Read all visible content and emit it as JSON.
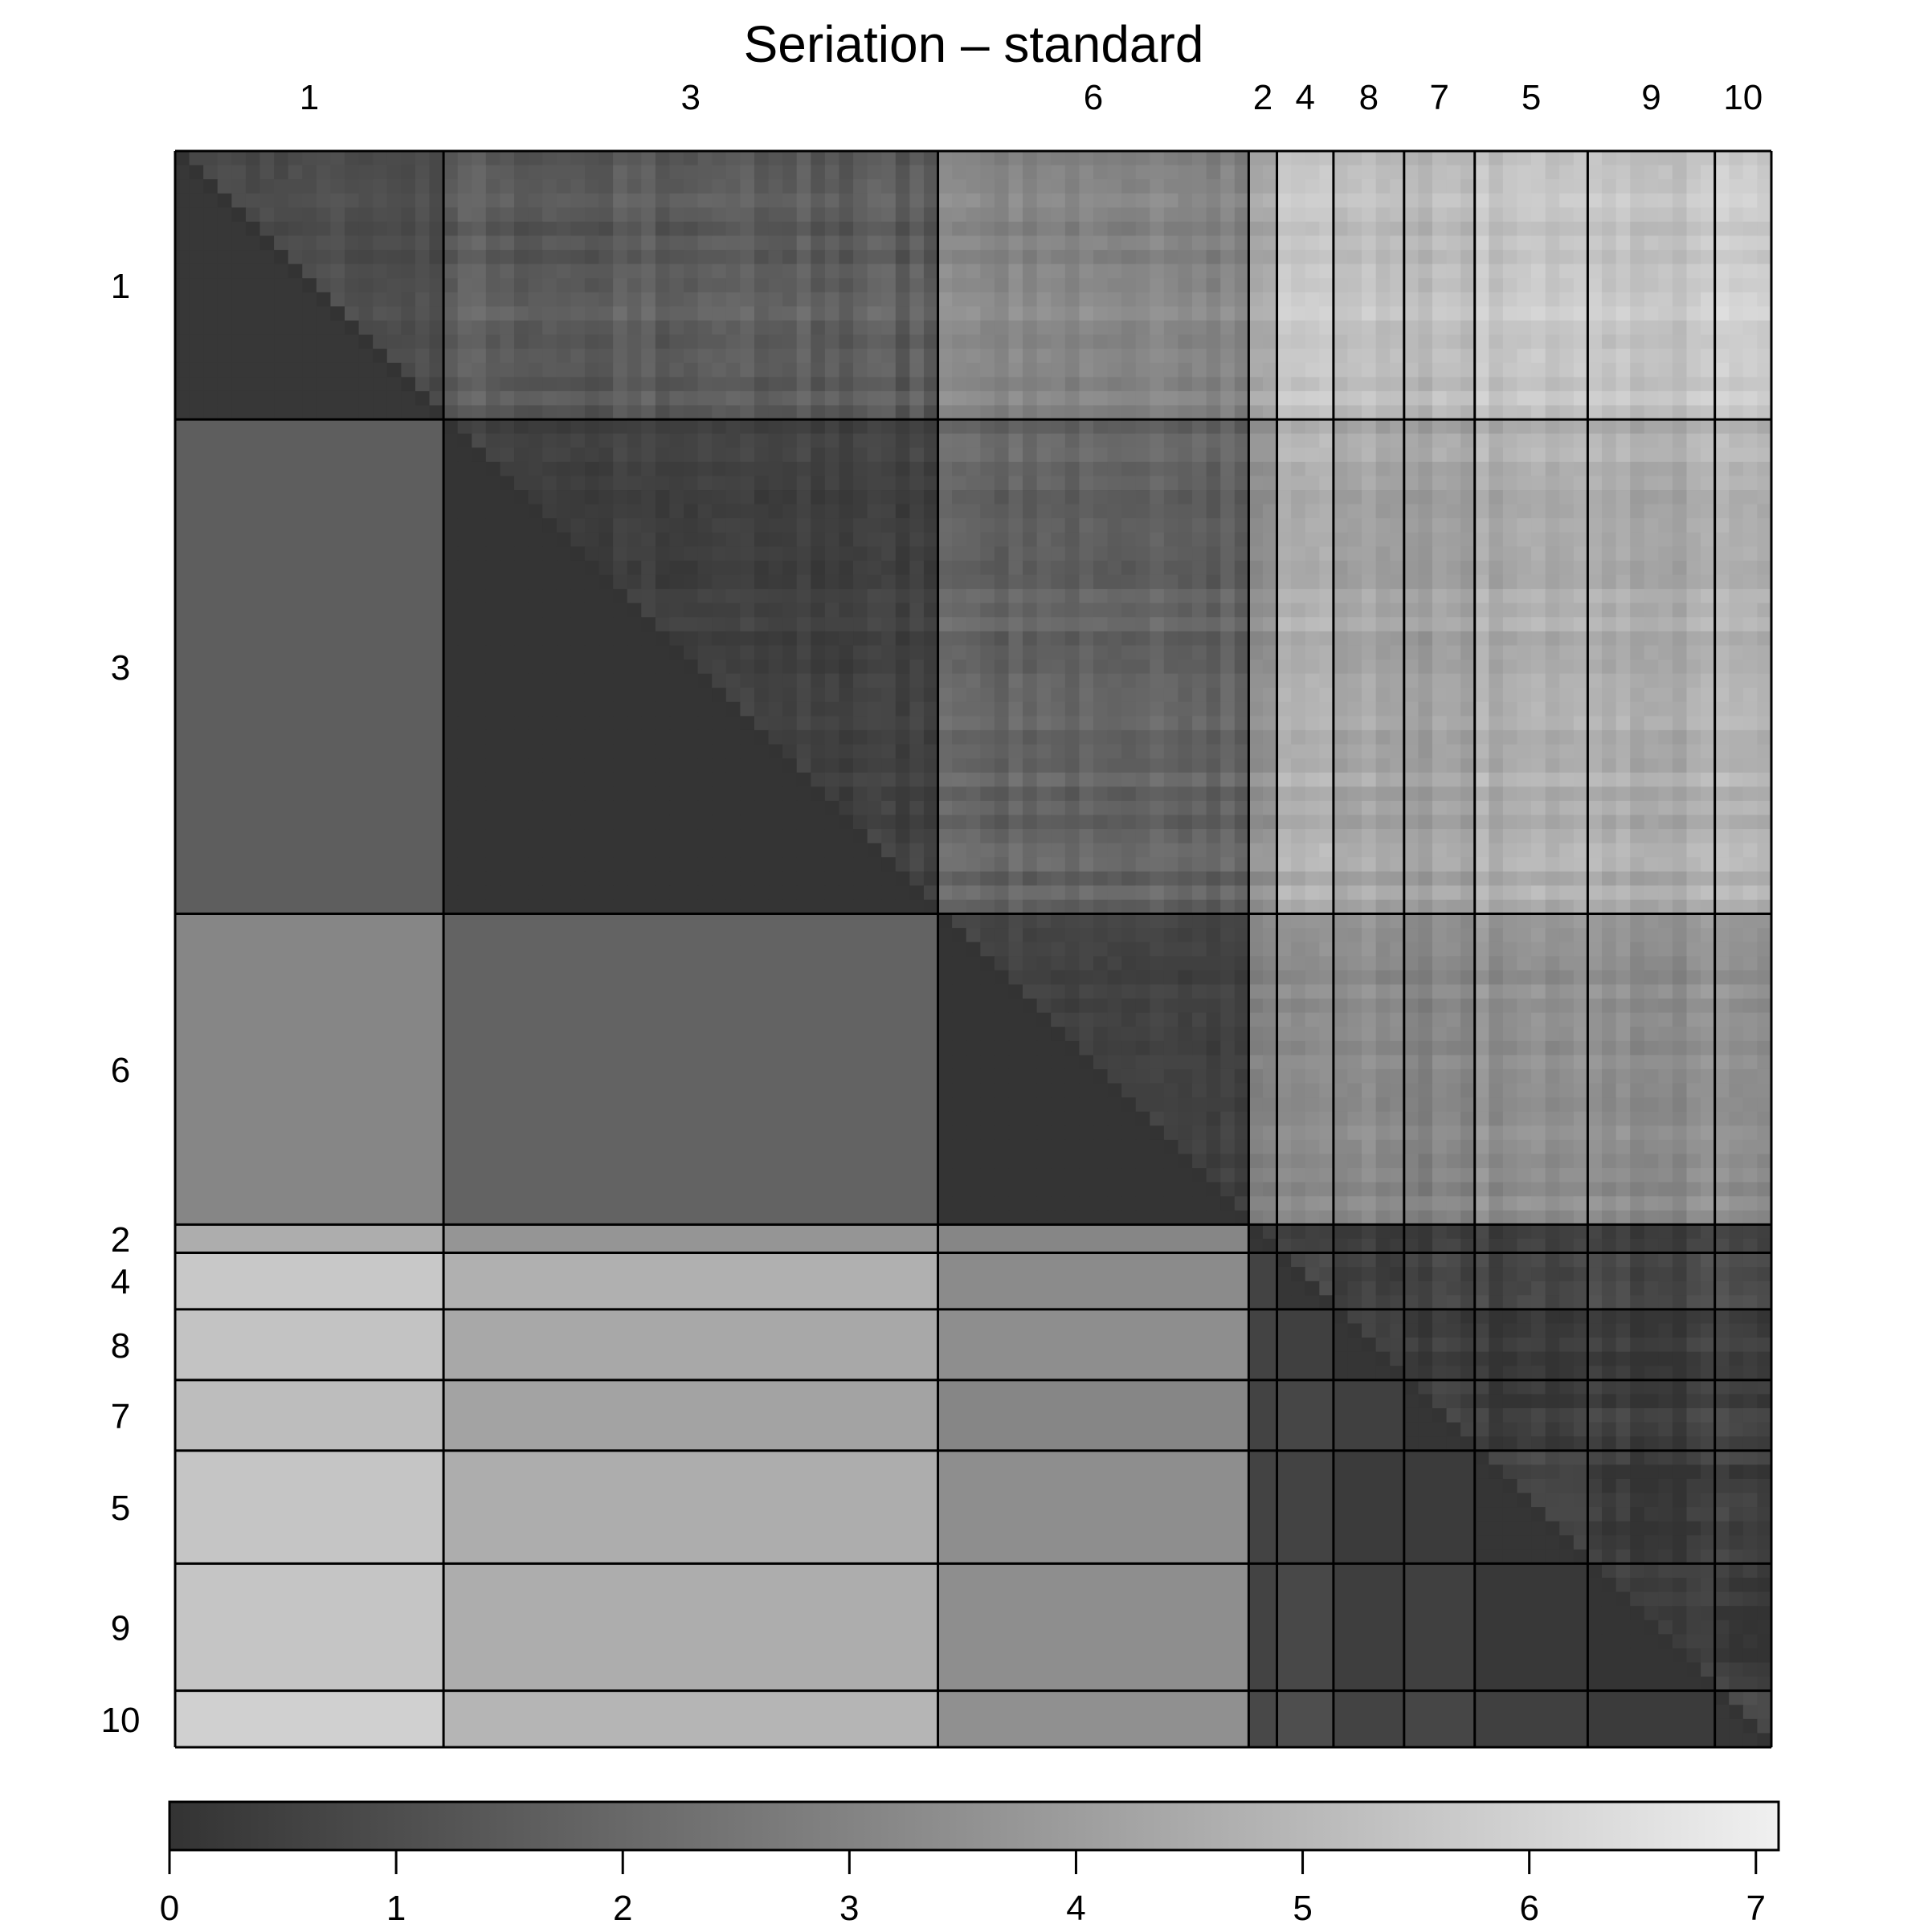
{
  "chart_data": {
    "type": "heatmap",
    "title": "Seriation – standard",
    "cluster_order": [
      "1",
      "3",
      "6",
      "2",
      "4",
      "8",
      "7",
      "5",
      "9",
      "10"
    ],
    "cluster_sizes": [
      19,
      35,
      22,
      2,
      4,
      5,
      5,
      8,
      9,
      4
    ],
    "lower_triangle": "cluster-average dissimilarity (block constant)",
    "upper_triangle": "individual pairwise dissimilarity",
    "block_mean_dissimilarity": [
      [
        0.4,
        1.6,
        3.1,
        4.6,
        5.6,
        5.4,
        5.2,
        5.5,
        5.5,
        5.9
      ],
      [
        1.6,
        0.1,
        1.8,
        3.7,
        4.7,
        4.4,
        4.2,
        4.6,
        4.6,
        4.9
      ],
      [
        3.1,
        1.8,
        0.1,
        3.1,
        3.3,
        3.4,
        3.1,
        3.4,
        3.4,
        3.5
      ],
      [
        4.6,
        3.7,
        3.1,
        0.2,
        0.6,
        0.6,
        0.6,
        0.6,
        0.6,
        0.8
      ],
      [
        5.6,
        4.7,
        3.3,
        0.6,
        0.3,
        0.5,
        0.7,
        0.6,
        0.8,
        1.0
      ],
      [
        5.4,
        4.4,
        3.4,
        0.6,
        0.5,
        0.2,
        0.5,
        0.3,
        0.4,
        0.6
      ],
      [
        5.2,
        4.2,
        3.1,
        0.6,
        0.7,
        0.5,
        0.2,
        0.3,
        0.5,
        0.7
      ],
      [
        5.5,
        4.6,
        3.4,
        0.6,
        0.6,
        0.3,
        0.3,
        0.2,
        0.2,
        0.5
      ],
      [
        5.5,
        4.6,
        3.4,
        0.6,
        0.8,
        0.4,
        0.5,
        0.2,
        0.1,
        0.3
      ],
      [
        5.9,
        4.9,
        3.5,
        0.8,
        1.0,
        0.6,
        0.7,
        0.5,
        0.3,
        0.4
      ]
    ],
    "colorbar": {
      "min": 0,
      "max": 7.1,
      "ticks": [
        0,
        1,
        2,
        3,
        4,
        5,
        6,
        7
      ],
      "low_color": "#333333",
      "high_color": "#f0f0f0"
    }
  }
}
